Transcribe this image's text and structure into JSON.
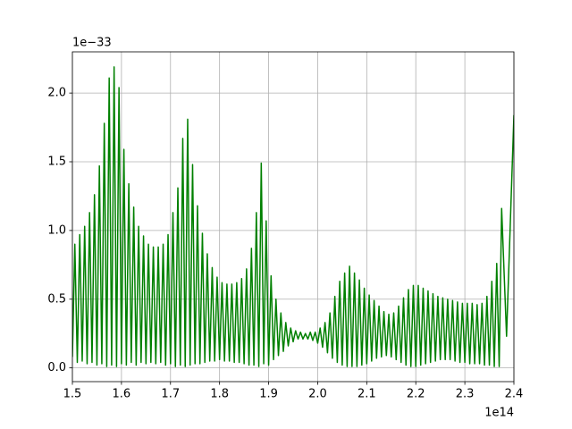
{
  "chart_data": {
    "type": "line",
    "x_offset_label": "1e14",
    "y_offset_label": "1e−33",
    "x": [
      1.5,
      1.505,
      1.51,
      1.515,
      1.52,
      1.525,
      1.53,
      1.535,
      1.54,
      1.545,
      1.55,
      1.555,
      1.56,
      1.565,
      1.57,
      1.575,
      1.58,
      1.585,
      1.59,
      1.595,
      1.6,
      1.605,
      1.61,
      1.615,
      1.62,
      1.625,
      1.63,
      1.635,
      1.64,
      1.645,
      1.65,
      1.655,
      1.66,
      1.665,
      1.67,
      1.675,
      1.68,
      1.685,
      1.69,
      1.695,
      1.7,
      1.705,
      1.71,
      1.715,
      1.72,
      1.725,
      1.73,
      1.735,
      1.74,
      1.745,
      1.75,
      1.755,
      1.76,
      1.765,
      1.77,
      1.775,
      1.78,
      1.785,
      1.79,
      1.795,
      1.8,
      1.805,
      1.81,
      1.815,
      1.82,
      1.825,
      1.83,
      1.835,
      1.84,
      1.845,
      1.85,
      1.855,
      1.86,
      1.865,
      1.87,
      1.875,
      1.88,
      1.885,
      1.89,
      1.895,
      1.9,
      1.905,
      1.91,
      1.915,
      1.92,
      1.925,
      1.93,
      1.935,
      1.94,
      1.945,
      1.95,
      1.955,
      1.96,
      1.965,
      1.97,
      1.975,
      1.98,
      1.985,
      1.99,
      1.995,
      2.0,
      2.005,
      2.01,
      2.015,
      2.02,
      2.025,
      2.03,
      2.035,
      2.04,
      2.045,
      2.05,
      2.055,
      2.06,
      2.065,
      2.07,
      2.075,
      2.08,
      2.085,
      2.09,
      2.095,
      2.1,
      2.105,
      2.11,
      2.115,
      2.12,
      2.125,
      2.13,
      2.135,
      2.14,
      2.145,
      2.15,
      2.155,
      2.16,
      2.165,
      2.17,
      2.175,
      2.18,
      2.185,
      2.19,
      2.195,
      2.2,
      2.205,
      2.21,
      2.215,
      2.22,
      2.225,
      2.23,
      2.235,
      2.24,
      2.245,
      2.25,
      2.255,
      2.26,
      2.265,
      2.27,
      2.275,
      2.28,
      2.285,
      2.29,
      2.295,
      2.3,
      2.305,
      2.31,
      2.315,
      2.32,
      2.325,
      2.33,
      2.335,
      2.34,
      2.345,
      2.35,
      2.355,
      2.36,
      2.365,
      2.37,
      2.375,
      2.385,
      2.4
    ],
    "series": [
      {
        "color": "#008000",
        "values": [
          0.08,
          0.9,
          0.04,
          0.97,
          0.05,
          1.03,
          0.03,
          1.13,
          0.04,
          1.26,
          0.02,
          1.47,
          0.03,
          1.78,
          0.01,
          2.11,
          0.02,
          2.19,
          0.01,
          2.04,
          0.03,
          1.59,
          0.02,
          1.34,
          0.04,
          1.17,
          0.02,
          1.03,
          0.04,
          0.96,
          0.03,
          0.9,
          0.04,
          0.88,
          0.03,
          0.88,
          0.04,
          0.9,
          0.02,
          0.97,
          0.03,
          1.13,
          0.01,
          1.31,
          0.02,
          1.67,
          0.01,
          1.81,
          0.02,
          1.48,
          0.03,
          1.18,
          0.03,
          0.98,
          0.04,
          0.83,
          0.05,
          0.73,
          0.05,
          0.66,
          0.06,
          0.62,
          0.05,
          0.61,
          0.05,
          0.61,
          0.04,
          0.62,
          0.04,
          0.65,
          0.03,
          0.72,
          0.02,
          0.87,
          0.02,
          1.13,
          0.01,
          1.49,
          0.03,
          1.07,
          0.02,
          0.67,
          0.06,
          0.5,
          0.09,
          0.4,
          0.12,
          0.33,
          0.16,
          0.29,
          0.19,
          0.27,
          0.21,
          0.26,
          0.21,
          0.25,
          0.21,
          0.26,
          0.2,
          0.26,
          0.18,
          0.29,
          0.15,
          0.33,
          0.11,
          0.4,
          0.07,
          0.52,
          0.04,
          0.63,
          0.02,
          0.69,
          0.01,
          0.74,
          0.01,
          0.69,
          0.01,
          0.64,
          0.02,
          0.58,
          0.03,
          0.53,
          0.05,
          0.49,
          0.07,
          0.45,
          0.08,
          0.41,
          0.09,
          0.39,
          0.08,
          0.4,
          0.06,
          0.45,
          0.04,
          0.51,
          0.02,
          0.57,
          0.01,
          0.6,
          0.01,
          0.6,
          0.02,
          0.58,
          0.03,
          0.56,
          0.04,
          0.54,
          0.05,
          0.52,
          0.06,
          0.51,
          0.06,
          0.5,
          0.06,
          0.49,
          0.05,
          0.48,
          0.04,
          0.47,
          0.04,
          0.47,
          0.03,
          0.47,
          0.03,
          0.46,
          0.03,
          0.47,
          0.02,
          0.52,
          0.02,
          0.63,
          0.01,
          0.76,
          0.01,
          1.16,
          0.23,
          1.84
        ]
      }
    ],
    "xlim": [
      1.5,
      2.4
    ],
    "ylim": [
      -0.1,
      2.3
    ],
    "xticks": [
      1.5,
      1.6,
      1.7,
      1.8,
      1.9,
      {
        "value": 2,
        "label": "2.0"
      },
      2.1,
      2.2,
      2.3,
      2.4
    ],
    "yticks": [
      {
        "value": 0,
        "label": "0.0"
      },
      0.5,
      {
        "value": 1,
        "label": "1.0"
      },
      1.5,
      {
        "value": 2,
        "label": "2.0"
      }
    ],
    "grid": true
  }
}
